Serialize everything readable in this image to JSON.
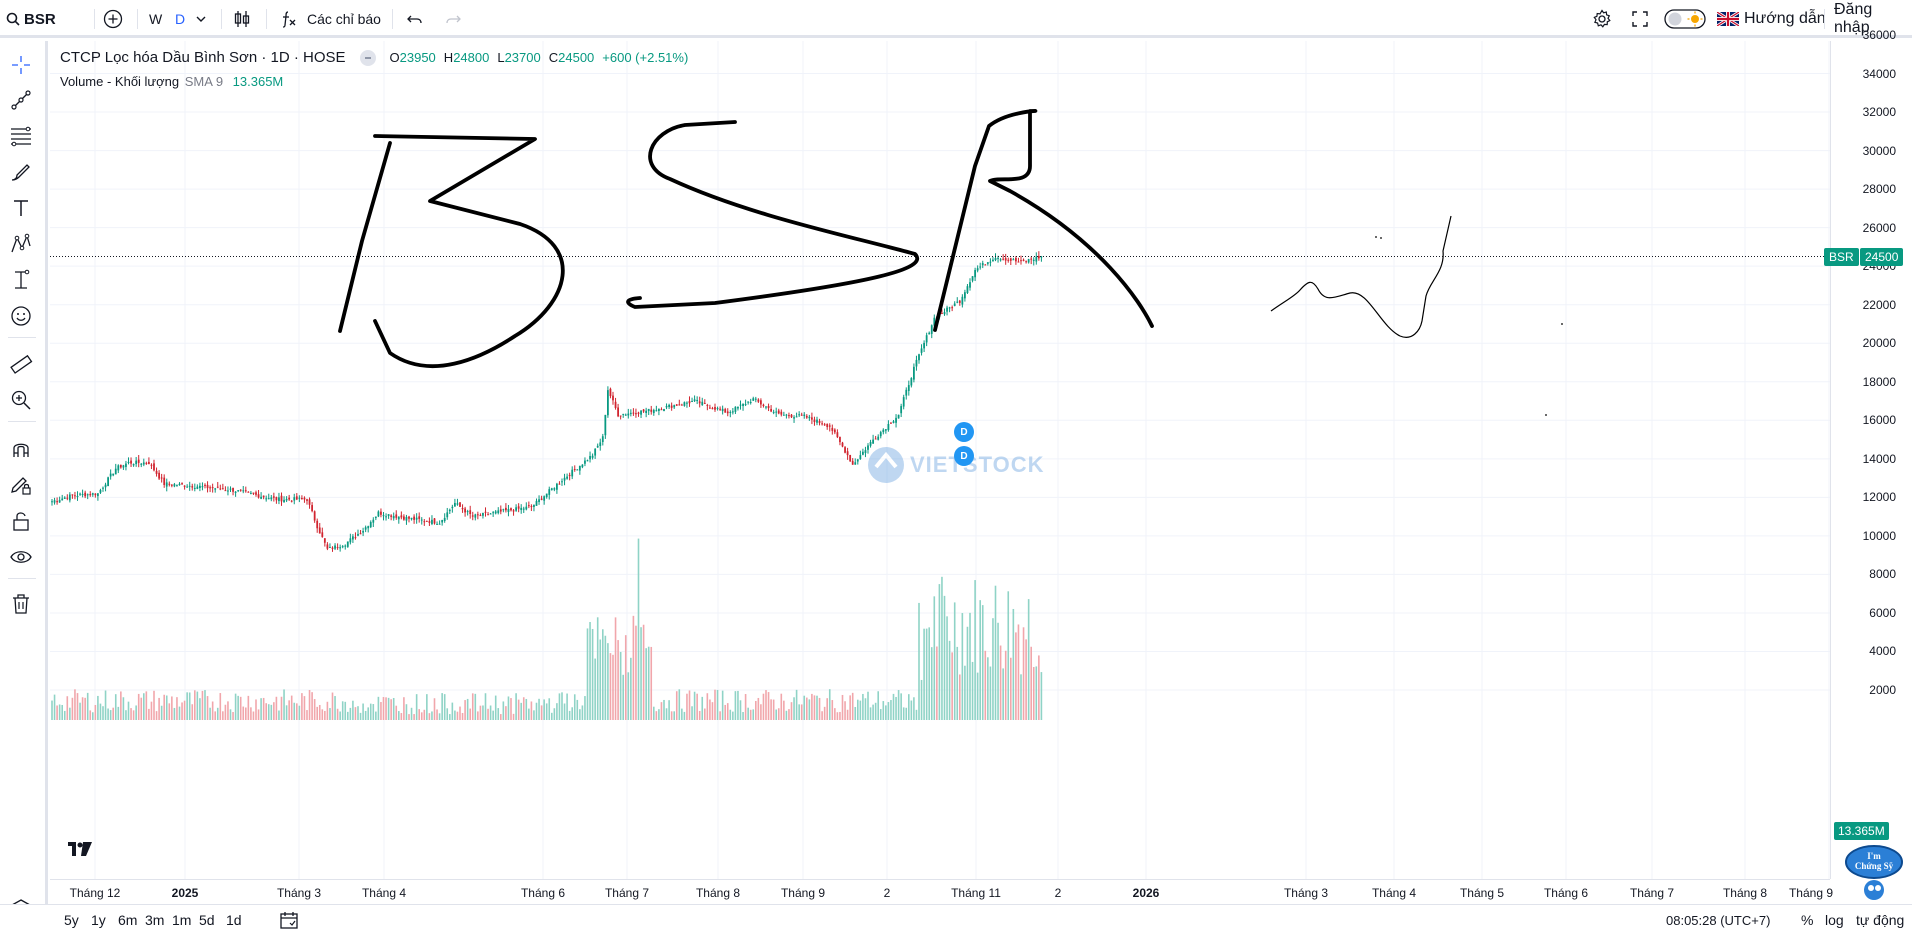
{
  "topbar": {
    "symbol": "BSR",
    "interval_w": "W",
    "interval_d": "D",
    "indicators_label": "Các chỉ báo",
    "guide_label": "Hướng dẫn",
    "login_label": "Đăng nhập"
  },
  "legend": {
    "title": "CTCP Lọc hóa Dầu Bình Sơn · 1D · HOSE",
    "o_label": "O",
    "o": "23950",
    "h_label": "H",
    "h": "24800",
    "l_label": "L",
    "l": "23700",
    "c_label": "C",
    "c": "24500",
    "change": "+600 (+2.51%)",
    "volume_label": "Volume - Khối lượng",
    "sma_label": "SMA 9",
    "volume_value": "13.365M"
  },
  "price_tag": {
    "symbol": "BSR",
    "price": "24500"
  },
  "volume_tag": "13.365M",
  "dividend_badges": [
    "D",
    "D"
  ],
  "watermark": "VIETSTOCK",
  "mascot_text": "I'm Chứng Sỹ",
  "bottombar": {
    "ranges": [
      "5y",
      "1y",
      "6m",
      "3m",
      "1m",
      "5d",
      "1d"
    ],
    "time": "08:05:28 (UTC+7)",
    "percent": "%",
    "log": "log",
    "auto": "tự động"
  },
  "colors": {
    "up": "#089981",
    "down": "#d1242f",
    "accent": "#2962ff",
    "drawing": "#000000"
  },
  "chart_data": {
    "type": "candlestick",
    "title": "CTCP Lọc hóa Dầu Bình Sơn · 1D · HOSE",
    "y_ticks": [
      "36000",
      "34000",
      "32000",
      "30000",
      "28000",
      "26000",
      "24000",
      "22000",
      "20000",
      "18000",
      "16000",
      "14000",
      "12000",
      "10000",
      "8000",
      "6000",
      "4000",
      "2000"
    ],
    "x_ticks": [
      "Tháng 12",
      "2025",
      "Tháng 3",
      "Tháng 4",
      "Tháng 6",
      "Tháng 7",
      "Tháng 8",
      "Tháng 9",
      "2",
      "Tháng 11",
      "2",
      "2026",
      "Tháng 3",
      "Tháng 4",
      "Tháng 5",
      "Tháng 6",
      "Tháng 7",
      "Tháng 8",
      "Tháng 9"
    ],
    "price_anchors": [
      [
        0,
        11800
      ],
      [
        8,
        12100
      ],
      [
        18,
        12200
      ],
      [
        25,
        13500
      ],
      [
        30,
        13800
      ],
      [
        38,
        13800
      ],
      [
        44,
        12700
      ],
      [
        55,
        12600
      ],
      [
        70,
        12400
      ],
      [
        88,
        11900
      ],
      [
        100,
        11900
      ],
      [
        104,
        10500
      ],
      [
        108,
        9300
      ],
      [
        115,
        9600
      ],
      [
        122,
        10300
      ],
      [
        128,
        11200
      ],
      [
        140,
        10900
      ],
      [
        152,
        10700
      ],
      [
        158,
        11700
      ],
      [
        165,
        11000
      ],
      [
        178,
        11300
      ],
      [
        188,
        11500
      ],
      [
        200,
        12900
      ],
      [
        212,
        14200
      ],
      [
        216,
        15100
      ],
      [
        218,
        17600
      ],
      [
        222,
        16300
      ],
      [
        234,
        16500
      ],
      [
        252,
        17000
      ],
      [
        265,
        16400
      ],
      [
        275,
        17100
      ],
      [
        285,
        16300
      ],
      [
        295,
        16200
      ],
      [
        305,
        15700
      ],
      [
        312,
        14200
      ],
      [
        314,
        13700
      ],
      [
        322,
        15000
      ],
      [
        332,
        16300
      ],
      [
        338,
        18700
      ],
      [
        346,
        21300
      ],
      [
        356,
        22200
      ],
      [
        362,
        23800
      ],
      [
        370,
        24500
      ],
      [
        380,
        24200
      ],
      [
        388,
        24500
      ]
    ],
    "current_price": 24500,
    "ylim": [
      0,
      36000
    ],
    "volume_axis_max": 10000
  }
}
